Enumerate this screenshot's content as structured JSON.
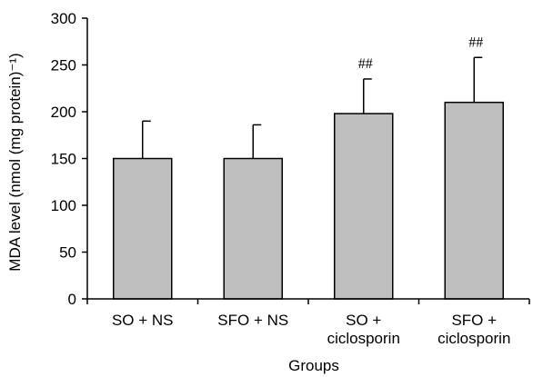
{
  "chart_data": {
    "type": "bar",
    "ylabel": "MDA level (nmol (mg protein)⁻¹)",
    "xlabel": "Groups",
    "ylim": [
      0,
      300
    ],
    "yticks": [
      0,
      50,
      100,
      150,
      200,
      250,
      300
    ],
    "categories": [
      [
        "SO + NS"
      ],
      [
        "SFO + NS"
      ],
      [
        "SO +",
        "ciclosporin"
      ],
      [
        "SFO +",
        "ciclosporin"
      ]
    ],
    "values": [
      150,
      150,
      198,
      210
    ],
    "error_upper": [
      40,
      36,
      37,
      48
    ],
    "annotations": [
      "",
      "",
      "##",
      "##"
    ],
    "bar_color": "#bfbfbf",
    "grid": false,
    "legend": "none"
  }
}
